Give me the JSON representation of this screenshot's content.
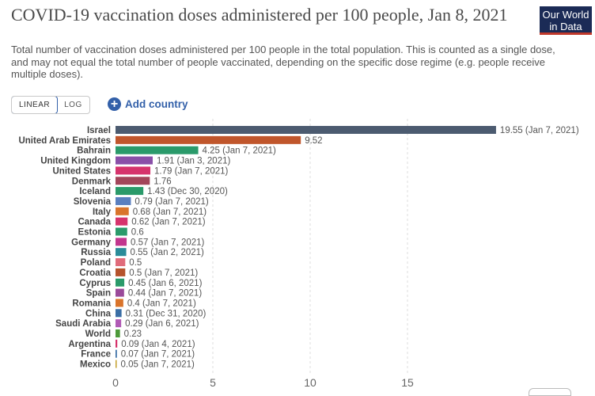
{
  "header": {
    "title": "COVID-19 vaccination doses administered per 100 people, Jan 8, 2021",
    "subtitle": "Total number of vaccination doses administered per 100 people in the total population. This is counted as a single dose, and may not equal the total number of people vaccinated, depending on the specific dose regime (e.g. people receive multiple doses).",
    "logo": "Our World in Data"
  },
  "controls": {
    "linear_label": "LINEAR",
    "log_label": "LOG",
    "selected_scale": "LINEAR",
    "add_country_label": "Add country",
    "add_icon": "plus-circle-icon"
  },
  "colors": {
    "accent": "#3360a9",
    "logo_bg": "#1b2b56",
    "logo_bar": "#c0392b"
  },
  "chart_data": {
    "type": "bar",
    "orientation": "horizontal",
    "title": "COVID-19 vaccination doses administered per 100 people, Jan 8, 2021",
    "xlim": [
      0,
      20
    ],
    "xticks": [
      0,
      5,
      10,
      15
    ],
    "grid": true,
    "bars": [
      {
        "country": "Israel",
        "value": 19.55,
        "label": "19.55 (Jan 7, 2021)",
        "color": "#4c5b70"
      },
      {
        "country": "United Arab Emirates",
        "value": 9.52,
        "label": "9.52",
        "color": "#c0562c"
      },
      {
        "country": "Bahrain",
        "value": 4.25,
        "label": "4.25 (Jan 7, 2021)",
        "color": "#2a9a6a"
      },
      {
        "country": "United Kingdom",
        "value": 1.91,
        "label": "1.91 (Jan 3, 2021)",
        "color": "#8a4fa8"
      },
      {
        "country": "United States",
        "value": 1.79,
        "label": "1.79 (Jan 7, 2021)",
        "color": "#d6336c"
      },
      {
        "country": "Denmark",
        "value": 1.76,
        "label": "1.76",
        "color": "#a3455a"
      },
      {
        "country": "Iceland",
        "value": 1.43,
        "label": "1.43 (Dec 30, 2020)",
        "color": "#2a9a6a"
      },
      {
        "country": "Slovenia",
        "value": 0.79,
        "label": "0.79 (Jan 7, 2021)",
        "color": "#5a7fbf"
      },
      {
        "country": "Italy",
        "value": 0.68,
        "label": "0.68 (Jan 7, 2021)",
        "color": "#d9742b"
      },
      {
        "country": "Canada",
        "value": 0.62,
        "label": "0.62 (Jan 7, 2021)",
        "color": "#d6336c"
      },
      {
        "country": "Estonia",
        "value": 0.6,
        "label": "0.6",
        "color": "#2a9a6a"
      },
      {
        "country": "Germany",
        "value": 0.57,
        "label": "0.57 (Jan 7, 2021)",
        "color": "#c2368e"
      },
      {
        "country": "Russia",
        "value": 0.55,
        "label": "0.55 (Jan 2, 2021)",
        "color": "#2b8c99"
      },
      {
        "country": "Poland",
        "value": 0.5,
        "label": "0.5",
        "color": "#e06b7a"
      },
      {
        "country": "Croatia",
        "value": 0.5,
        "label": "0.5 (Jan 7, 2021)",
        "color": "#b5532c"
      },
      {
        "country": "Cyprus",
        "value": 0.45,
        "label": "0.45 (Jan 6, 2021)",
        "color": "#2a9a6a"
      },
      {
        "country": "Spain",
        "value": 0.44,
        "label": "0.44 (Jan 7, 2021)",
        "color": "#9a4a9a"
      },
      {
        "country": "Romania",
        "value": 0.4,
        "label": "0.4 (Jan 7, 2021)",
        "color": "#d9742b"
      },
      {
        "country": "China",
        "value": 0.31,
        "label": "0.31 (Dec 31, 2020)",
        "color": "#3a6ea5"
      },
      {
        "country": "Saudi Arabia",
        "value": 0.29,
        "label": "0.29 (Jan 6, 2021)",
        "color": "#b05ab5"
      },
      {
        "country": "World",
        "value": 0.23,
        "label": "0.23",
        "color": "#4e9a3a"
      },
      {
        "country": "Argentina",
        "value": 0.09,
        "label": "0.09 (Jan 4, 2021)",
        "color": "#d6336c"
      },
      {
        "country": "France",
        "value": 0.07,
        "label": "0.07 (Jan 7, 2021)",
        "color": "#3a6ea5"
      },
      {
        "country": "Mexico",
        "value": 0.05,
        "label": "0.05 (Jan 7, 2021)",
        "color": "#c4a12c"
      }
    ]
  }
}
